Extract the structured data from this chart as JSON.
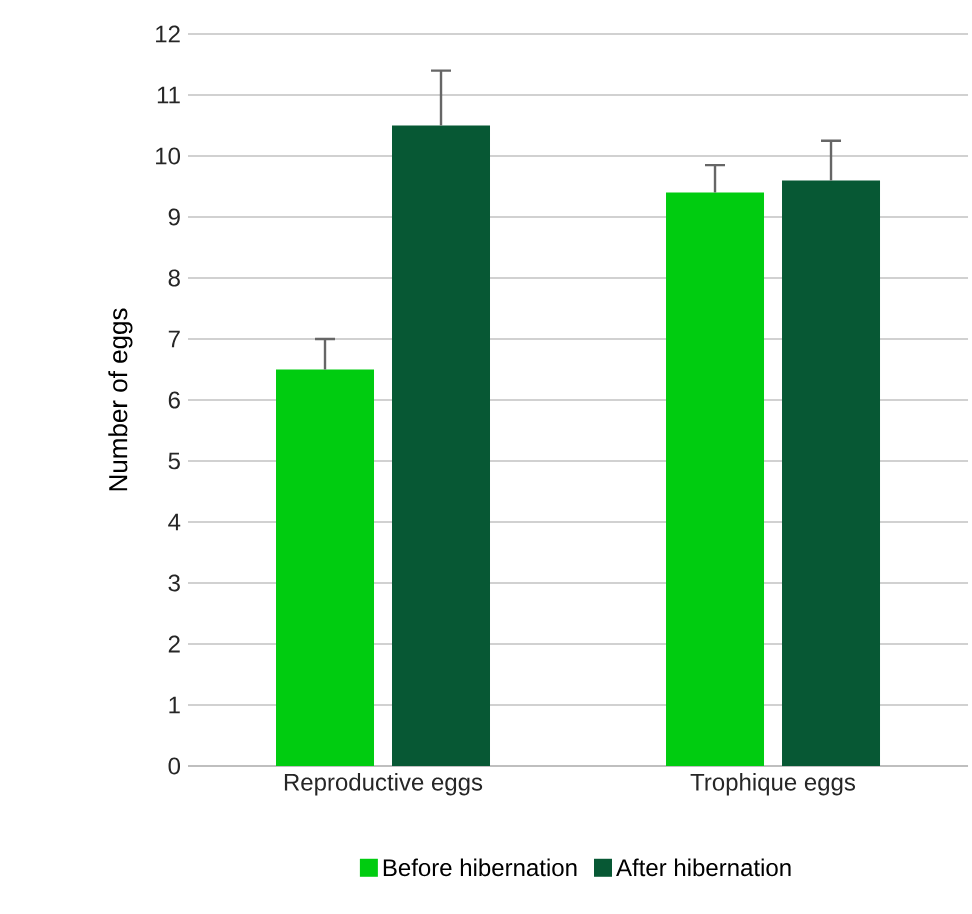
{
  "chart_data": {
    "type": "bar",
    "ylabel": "Number of eggs",
    "categories": [
      "Reproductive eggs",
      "Trophique eggs"
    ],
    "series": [
      {
        "name": "Before hibernation",
        "color": "#00cc10",
        "values": [
          6.5,
          9.4
        ],
        "errors": [
          [
            6.5,
            7.0
          ],
          [
            9.4,
            9.85
          ]
        ]
      },
      {
        "name": "After hibernation",
        "color": "#075834",
        "values": [
          10.5,
          9.6
        ],
        "errors": [
          [
            10.5,
            11.4
          ],
          [
            9.6,
            10.25
          ]
        ]
      }
    ],
    "ylim": [
      0,
      12
    ],
    "yticks": [
      0,
      1,
      2,
      3,
      4,
      5,
      6,
      7,
      8,
      9,
      10,
      11,
      12
    ],
    "grid": "y",
    "legend": "bottom"
  }
}
